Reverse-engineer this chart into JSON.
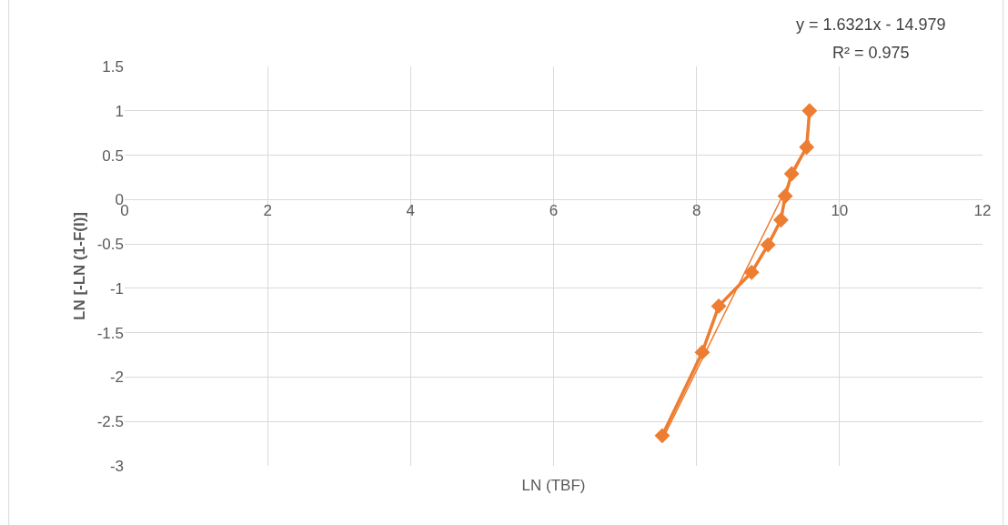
{
  "chart_data": {
    "type": "line",
    "xlabel": "LN (TBF)",
    "ylabel": "LN [-LN (1-F(I)]",
    "annotations": [
      "y = 1.6321x - 14.979",
      "R² = 0.975"
    ],
    "x": [
      7.52,
      8.08,
      8.31,
      8.77,
      9.0,
      9.18,
      9.24,
      9.33,
      9.54,
      9.58
    ],
    "series": [
      {
        "color": "#ed7d31",
        "marker": "diamond",
        "values": [
          -2.66,
          -1.72,
          -1.2,
          -0.82,
          -0.51,
          -0.23,
          0.04,
          0.29,
          0.59,
          1.0
        ]
      },
      {
        "type": "line",
        "color": "#ed7d31",
        "marker": "none",
        "x": [
          7.52,
          9.58
        ],
        "values": [
          -2.71,
          0.66
        ]
      }
    ],
    "xlim": [
      0,
      12
    ],
    "xticks": [
      0,
      2,
      4,
      6,
      8,
      10,
      12
    ],
    "ylim": [
      -3,
      1.5
    ],
    "yticks": [
      -3,
      -2.5,
      -2,
      -1.5,
      -1,
      -0.5,
      0,
      0.5,
      1,
      1.5
    ],
    "grid": true,
    "line_style": "solid"
  }
}
